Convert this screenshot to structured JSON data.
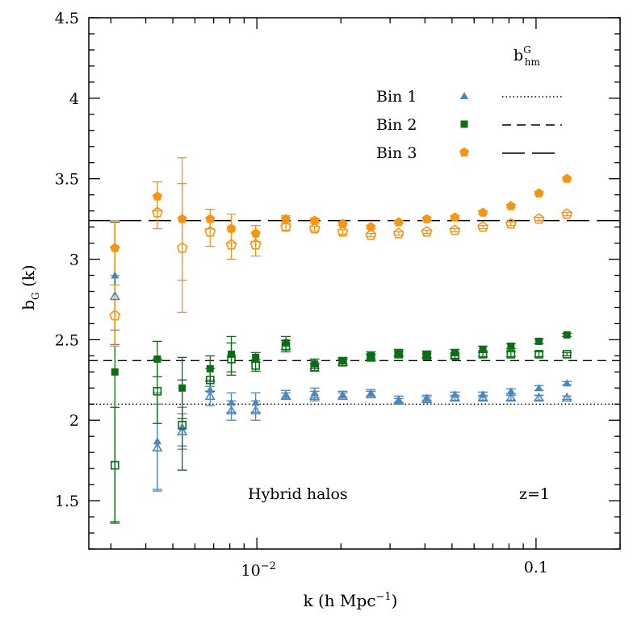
{
  "chart_data": {
    "type": "scatter",
    "x_scale": "log",
    "xlim": [
      0.0025,
      0.2
    ],
    "ylim": [
      1.2,
      4.5
    ],
    "xlabel_parts": {
      "base": "k (h Mpc",
      "sup": "−1",
      "tail": ")"
    },
    "ylabel_parts": {
      "base": "b",
      "sub": "G",
      "tail": " (k)"
    },
    "y_ticks": [
      "1.5",
      "2",
      "2.5",
      "3",
      "3.5",
      "4",
      "4.5"
    ],
    "x_tick_labels": {
      "k001": {
        "base": "10",
        "sup": "−2"
      },
      "k01": "0.1"
    },
    "legend_header": {
      "base": "b",
      "sup": "G",
      "sub": "hm"
    },
    "annotations": {
      "left": "Hybrid halos",
      "right": "z=1"
    },
    "colors": {
      "bin1": "#4b86bd",
      "bin2": "#0a6e14",
      "bin3": "#f79512"
    },
    "series": [
      {
        "name": "Bin 1",
        "marker": "triangle",
        "color": "#4b86bd",
        "line_style": "dotted",
        "b_hm": 2.1,
        "filled": [
          [
            0.0031,
            2.9,
            0.34
          ],
          [
            0.0044,
            1.87,
            0.3
          ],
          [
            0.0054,
            1.96,
            0.12
          ],
          [
            0.0068,
            2.19,
            0.06
          ],
          [
            0.0081,
            2.11,
            0.06
          ],
          [
            0.0099,
            2.11,
            0.06
          ],
          [
            0.0127,
            2.16,
            0.025
          ],
          [
            0.0161,
            2.17,
            0.03
          ],
          [
            0.0203,
            2.16,
            0.02
          ],
          [
            0.0256,
            2.17,
            0.02
          ],
          [
            0.0322,
            2.13,
            0.02
          ],
          [
            0.0406,
            2.14,
            0.015
          ],
          [
            0.0512,
            2.16,
            0.015
          ],
          [
            0.0645,
            2.16,
            0.015
          ],
          [
            0.0813,
            2.18,
            0.015
          ],
          [
            0.1024,
            2.2,
            0.015
          ],
          [
            0.129,
            2.23,
            0.01
          ]
        ],
        "open": [
          [
            0.0031,
            2.77,
            0.3
          ],
          [
            0.0044,
            1.83,
            0.27
          ],
          [
            0.0054,
            1.93,
            0.11
          ],
          [
            0.0068,
            2.15,
            0.06
          ],
          [
            0.0081,
            2.06,
            0.06
          ],
          [
            0.0099,
            2.06,
            0.06
          ],
          [
            0.0127,
            2.15,
            0.02
          ],
          [
            0.0161,
            2.15,
            0.03
          ],
          [
            0.0203,
            2.15,
            0.02
          ],
          [
            0.0256,
            2.16,
            0.02
          ],
          [
            0.0322,
            2.12,
            0.015
          ],
          [
            0.0406,
            2.13,
            0.015
          ],
          [
            0.0512,
            2.14,
            0.015
          ],
          [
            0.0645,
            2.14,
            0.015
          ],
          [
            0.0813,
            2.14,
            0.015
          ],
          [
            0.1024,
            2.14,
            0.015
          ],
          [
            0.129,
            2.14,
            0.01
          ]
        ]
      },
      {
        "name": "Bin 2",
        "marker": "square",
        "color": "#0a6e14",
        "line_style": "dashed",
        "b_hm": 2.37,
        "filled": [
          [
            0.0031,
            2.3,
            0.93
          ],
          [
            0.0044,
            2.38,
            0.11
          ],
          [
            0.0054,
            2.2,
            0.19
          ],
          [
            0.0068,
            2.32,
            0.08
          ],
          [
            0.0081,
            2.41,
            0.11
          ],
          [
            0.0099,
            2.39,
            0.03
          ],
          [
            0.0127,
            2.48,
            0.04
          ],
          [
            0.0161,
            2.35,
            0.03
          ],
          [
            0.0203,
            2.37,
            0.02
          ],
          [
            0.0256,
            2.4,
            0.025
          ],
          [
            0.0322,
            2.42,
            0.02
          ],
          [
            0.0406,
            2.41,
            0.02
          ],
          [
            0.0512,
            2.42,
            0.02
          ],
          [
            0.0645,
            2.44,
            0.02
          ],
          [
            0.0813,
            2.46,
            0.015
          ],
          [
            0.1024,
            2.49,
            0.015
          ],
          [
            0.129,
            2.53,
            0.01
          ]
        ],
        "open": [
          [
            0.0031,
            1.72,
            0.36
          ],
          [
            0.0044,
            2.18,
            0.2
          ],
          [
            0.0054,
            1.97,
            0.28
          ],
          [
            0.0068,
            2.25,
            0.07
          ],
          [
            0.0081,
            2.38,
            0.1
          ],
          [
            0.0099,
            2.34,
            0.035
          ],
          [
            0.0127,
            2.46,
            0.035
          ],
          [
            0.0161,
            2.33,
            0.025
          ],
          [
            0.0203,
            2.36,
            0.02
          ],
          [
            0.0256,
            2.39,
            0.02
          ],
          [
            0.0322,
            2.41,
            0.015
          ],
          [
            0.0406,
            2.4,
            0.015
          ],
          [
            0.0512,
            2.4,
            0.015
          ],
          [
            0.0645,
            2.41,
            0.015
          ],
          [
            0.0813,
            2.41,
            0.015
          ],
          [
            0.1024,
            2.41,
            0.015
          ],
          [
            0.129,
            2.41,
            0.01
          ]
        ]
      },
      {
        "name": "Bin 3",
        "marker": "pentagon",
        "color": "#f79512",
        "line_style": "long-dash",
        "b_hm": 3.24,
        "filled": [
          [
            0.0031,
            3.07,
            0.17
          ],
          [
            0.0044,
            3.39,
            0.09
          ],
          [
            0.0054,
            3.25,
            0.38
          ],
          [
            0.0068,
            3.25,
            0.06
          ],
          [
            0.0081,
            3.19,
            0.09
          ],
          [
            0.0099,
            3.16,
            0.05
          ],
          [
            0.0127,
            3.25,
            0.02
          ],
          [
            0.0161,
            3.24,
            0.015
          ],
          [
            0.0203,
            3.22,
            0.01
          ],
          [
            0.0256,
            3.2,
            0.01
          ],
          [
            0.0322,
            3.23,
            0.01
          ],
          [
            0.0406,
            3.25,
            0.01
          ],
          [
            0.0512,
            3.26,
            0.01
          ],
          [
            0.0645,
            3.29,
            0.01
          ],
          [
            0.0813,
            3.33,
            0.01
          ],
          [
            0.1024,
            3.41,
            0.01
          ],
          [
            0.129,
            3.5,
            0.01
          ]
        ],
        "open": [
          [
            0.0031,
            2.65,
            0.19
          ],
          [
            0.0044,
            3.29,
            0.1
          ],
          [
            0.0054,
            3.07,
            0.4
          ],
          [
            0.0068,
            3.17,
            0.09
          ],
          [
            0.0081,
            3.09,
            0.09
          ],
          [
            0.0099,
            3.09,
            0.07
          ],
          [
            0.0127,
            3.2,
            0.02
          ],
          [
            0.0161,
            3.19,
            0.015
          ],
          [
            0.0203,
            3.17,
            0.015
          ],
          [
            0.0256,
            3.15,
            0.01
          ],
          [
            0.0322,
            3.16,
            0.01
          ],
          [
            0.0406,
            3.17,
            0.01
          ],
          [
            0.0512,
            3.18,
            0.01
          ],
          [
            0.0645,
            3.2,
            0.01
          ],
          [
            0.0813,
            3.22,
            0.01
          ],
          [
            0.1024,
            3.25,
            0.01
          ],
          [
            0.129,
            3.28,
            0.01
          ]
        ]
      }
    ]
  }
}
